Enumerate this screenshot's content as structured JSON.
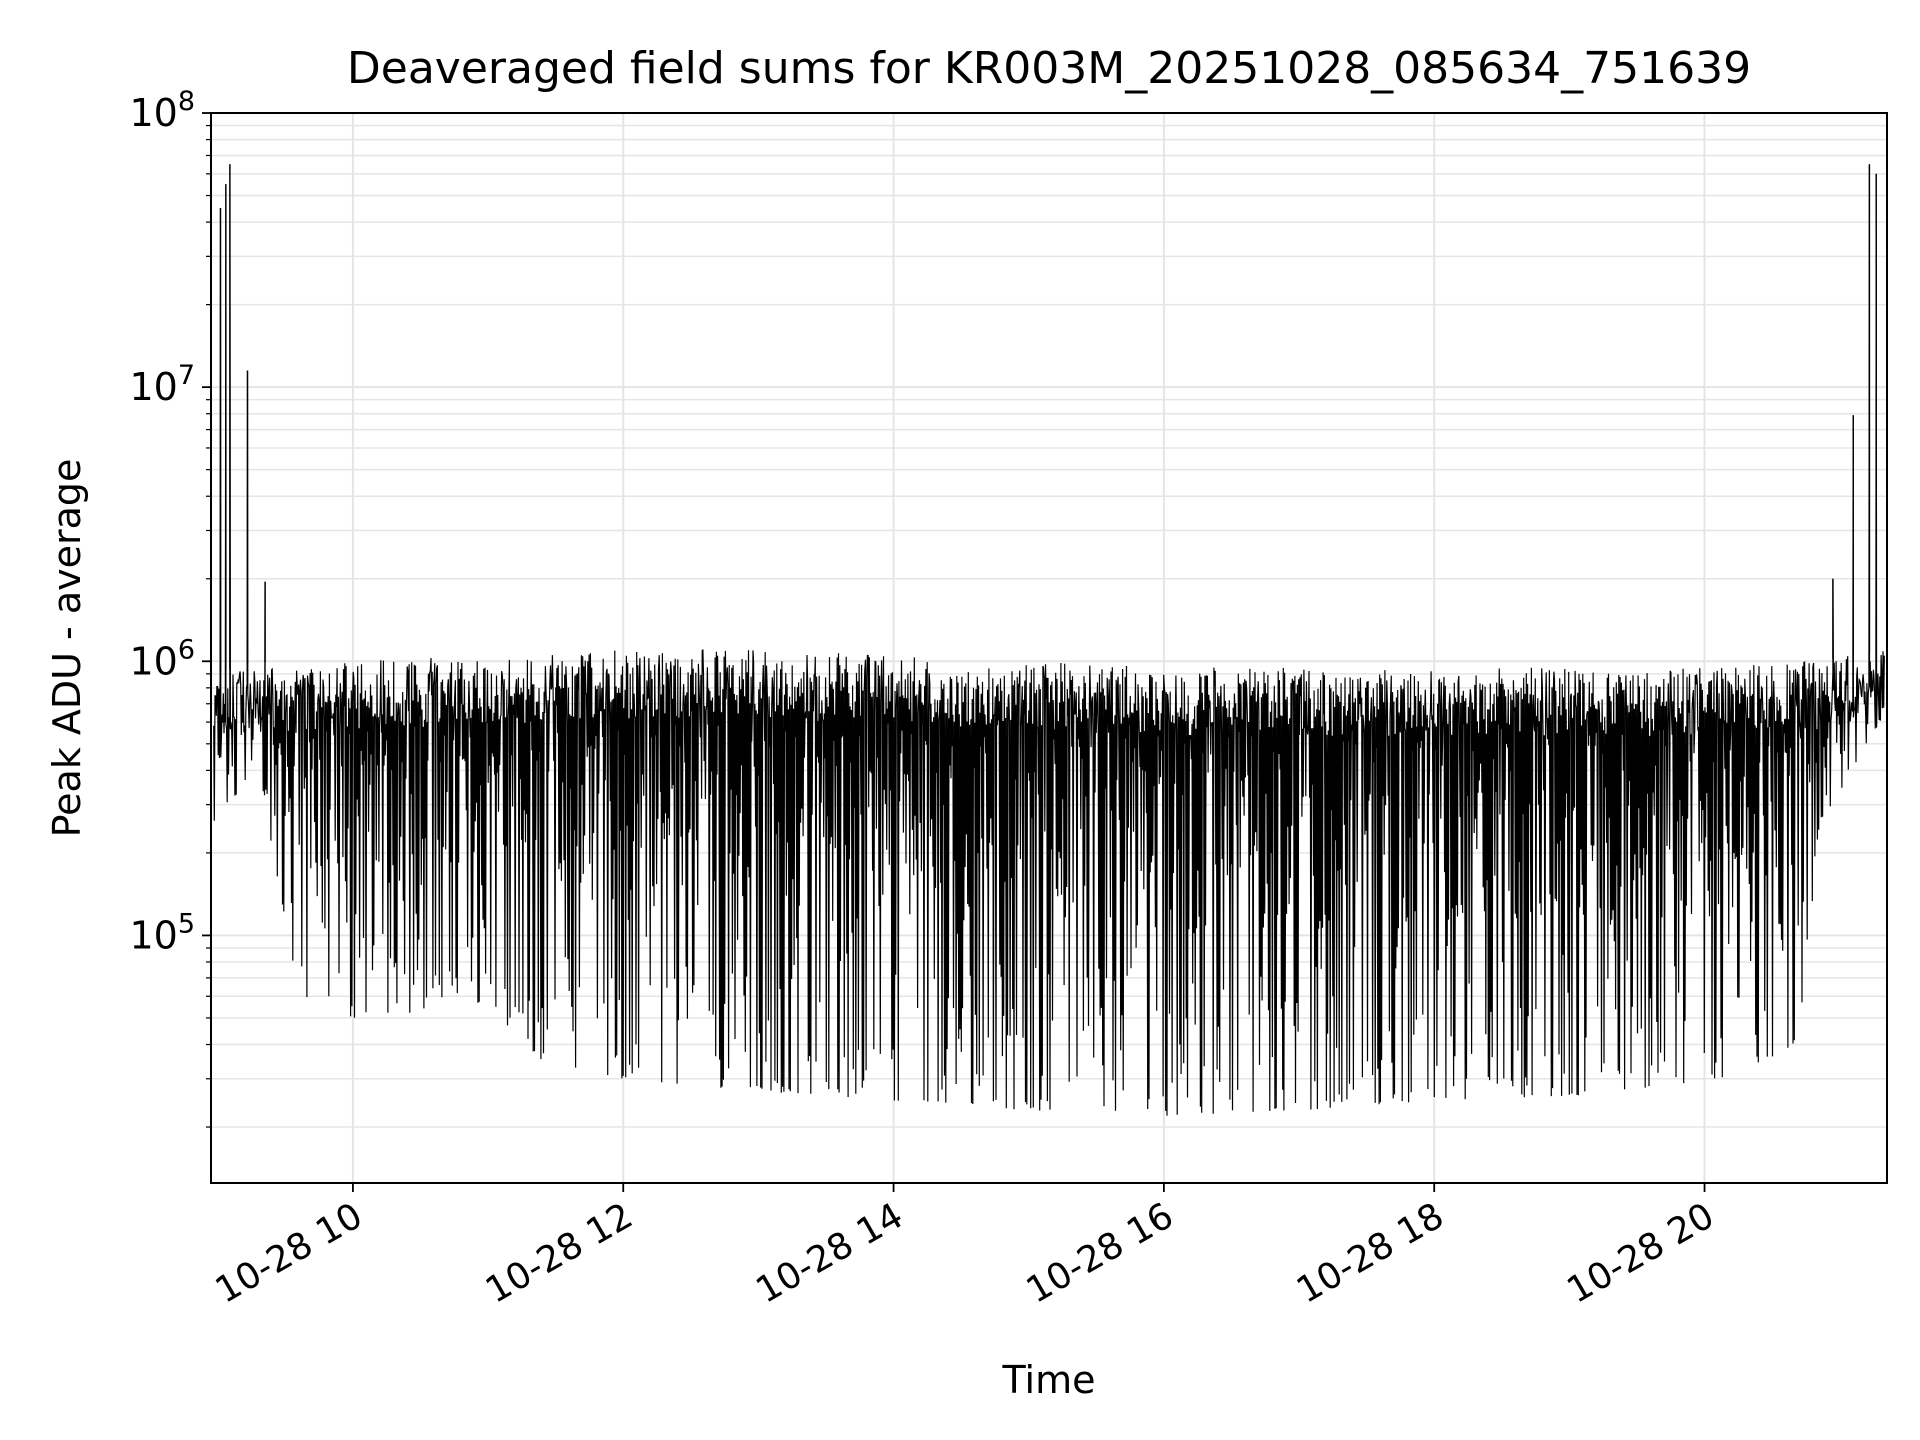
{
  "chart_data": {
    "type": "line",
    "title": "Deaveraged field sums for KR003M_20251028_085634_751639",
    "xlabel": "Time",
    "ylabel": "Peak ADU - average",
    "yscale": "log",
    "ylim": [
      12500,
      100000000
    ],
    "xlim_hours": [
      8.95,
      21.35
    ],
    "grid": true,
    "grid_minor": true,
    "line_color": "#000000",
    "grid_color": "#e5e5e5",
    "x_ticks": [
      {
        "value": 10,
        "label": "10-28 10"
      },
      {
        "value": 12,
        "label": "10-28 12"
      },
      {
        "value": 14,
        "label": "10-28 14"
      },
      {
        "value": 16,
        "label": "10-28 16"
      },
      {
        "value": 18,
        "label": "10-28 18"
      },
      {
        "value": 20,
        "label": "10-28 20"
      }
    ],
    "y_ticks": [
      {
        "value": 100000,
        "base": "10",
        "exp": "5"
      },
      {
        "value": 1000000,
        "base": "10",
        "exp": "6"
      },
      {
        "value": 10000000,
        "base": "10",
        "exp": "7"
      },
      {
        "value": 100000000,
        "base": "10",
        "exp": "8"
      }
    ],
    "series": [
      {
        "name": "Peak ADU - average",
        "envelope": [
          {
            "t": 8.95,
            "upper": 900000,
            "lower": 250000
          },
          {
            "t": 9.3,
            "upper": 1000000,
            "lower": 400000
          },
          {
            "t": 9.6,
            "upper": 950000,
            "lower": 60000
          },
          {
            "t": 10.0,
            "upper": 1000000,
            "lower": 50000
          },
          {
            "t": 11.0,
            "upper": 1050000,
            "lower": 55000
          },
          {
            "t": 11.4,
            "upper": 1050000,
            "lower": 35000
          },
          {
            "t": 12.0,
            "upper": 1100000,
            "lower": 30000
          },
          {
            "t": 13.0,
            "upper": 1100000,
            "lower": 27000
          },
          {
            "t": 14.0,
            "upper": 1050000,
            "lower": 25000
          },
          {
            "t": 15.0,
            "upper": 1000000,
            "lower": 23000
          },
          {
            "t": 16.0,
            "upper": 950000,
            "lower": 22000
          },
          {
            "t": 17.0,
            "upper": 950000,
            "lower": 23000
          },
          {
            "t": 18.0,
            "upper": 950000,
            "lower": 25000
          },
          {
            "t": 19.0,
            "upper": 950000,
            "lower": 26000
          },
          {
            "t": 20.0,
            "upper": 950000,
            "lower": 28000
          },
          {
            "t": 20.7,
            "upper": 1000000,
            "lower": 40000
          },
          {
            "t": 20.85,
            "upper": 1000000,
            "lower": 250000
          },
          {
            "t": 21.3,
            "upper": 1100000,
            "lower": 600000
          }
        ],
        "spikes": [
          {
            "t": 9.02,
            "value": 45000000
          },
          {
            "t": 9.06,
            "value": 55000000
          },
          {
            "t": 9.09,
            "value": 65000000
          },
          {
            "t": 9.22,
            "value": 11500000
          },
          {
            "t": 9.35,
            "value": 1950000
          },
          {
            "t": 20.95,
            "value": 2000000
          },
          {
            "t": 21.1,
            "value": 7900000
          },
          {
            "t": 21.22,
            "value": 65000000
          },
          {
            "t": 21.27,
            "value": 60000000
          }
        ]
      }
    ]
  }
}
